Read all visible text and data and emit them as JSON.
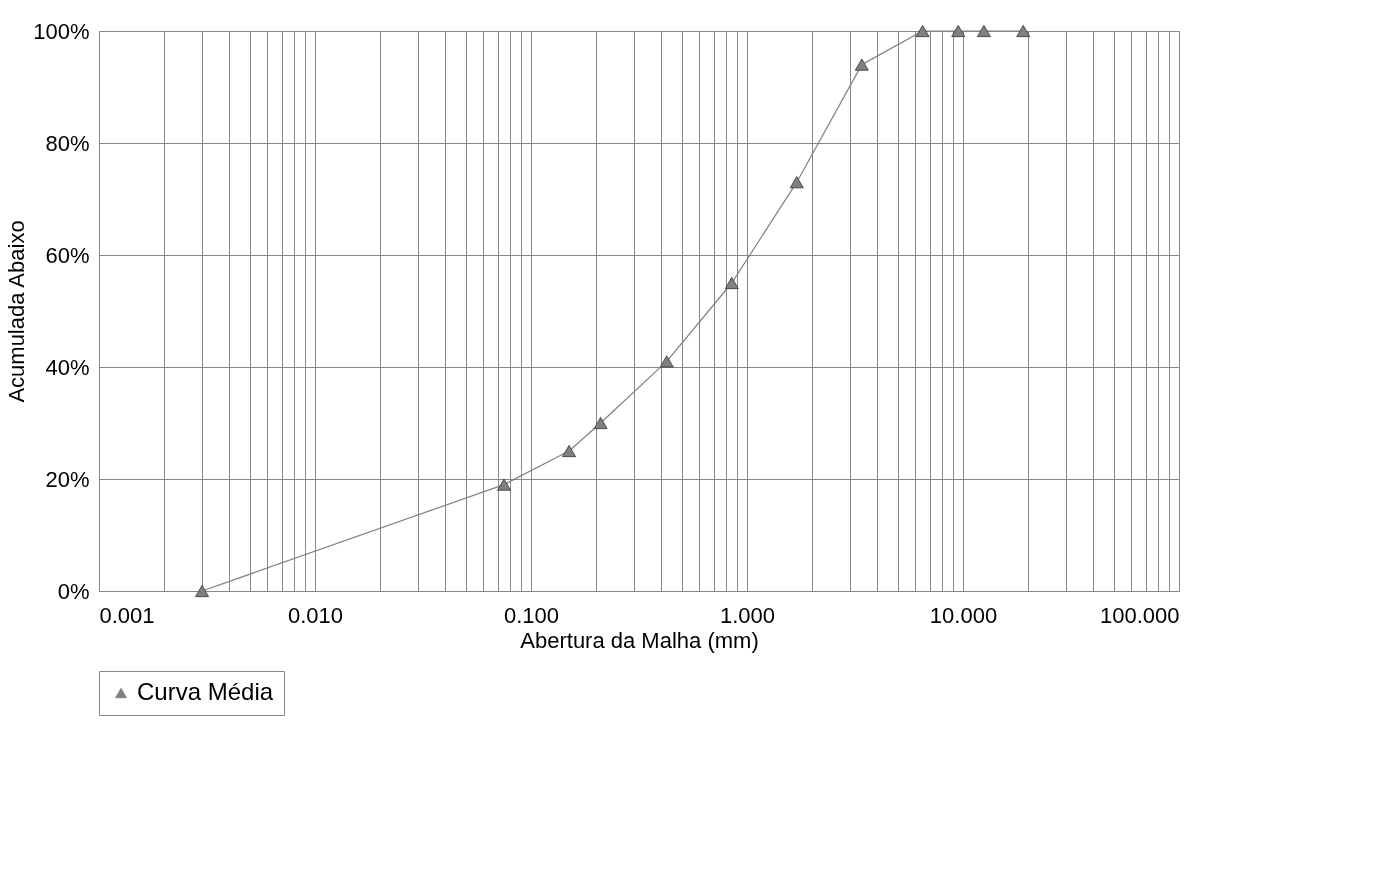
{
  "chart_data": {
    "type": "line",
    "xlabel": "Abertura da Malha (mm)",
    "ylabel": "Acumulada Abaixo",
    "x": [
      0.003,
      0.075,
      0.15,
      0.21,
      0.425,
      0.85,
      1.7,
      3.4,
      6.5,
      9.5,
      12.5,
      19
    ],
    "series": [
      {
        "name": "Curva Média",
        "color": "#808080",
        "values": [
          0,
          19,
          25,
          30,
          41,
          55,
          73,
          94,
          100,
          100,
          100,
          100
        ]
      }
    ],
    "log": "x",
    "xlim": [
      0.001,
      100
    ],
    "xticks": [
      {
        "value": 0.001,
        "label": "0.001"
      },
      {
        "value": 0.01,
        "label": "0.010"
      },
      {
        "value": 0.1,
        "label": "0.100"
      },
      {
        "value": 1,
        "label": "1.000"
      },
      {
        "value": 10,
        "label": "10.000"
      },
      {
        "value": 100,
        "label": "100.000"
      }
    ],
    "ylim": [
      0,
      100
    ],
    "yticks": [
      {
        "value": 0,
        "label": "0%"
      },
      {
        "value": 20,
        "label": "20%"
      },
      {
        "value": 40,
        "label": "40%"
      },
      {
        "value": 60,
        "label": "60%"
      },
      {
        "value": 80,
        "label": "80%"
      },
      {
        "value": 100,
        "label": "100%"
      }
    ],
    "grid": true,
    "legend": "bottom",
    "marker": "triangle",
    "line_style": "solid"
  }
}
